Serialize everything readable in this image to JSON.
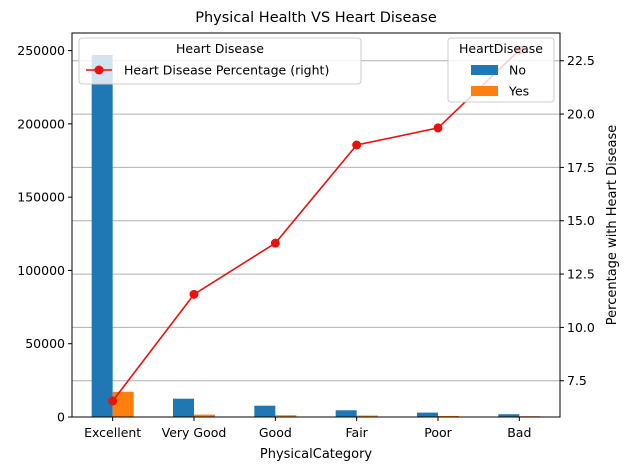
{
  "chart_data": {
    "type": "bar",
    "title": "Physical Health VS Heart Disease",
    "xlabel": "PhysicalCategory",
    "ylabel": "",
    "y2label": "Percentage with Heart Disease",
    "categories": [
      "Excellent",
      "Very Good",
      "Good",
      "Fair",
      "Poor",
      "Bad"
    ],
    "ylim": [
      0,
      262000
    ],
    "y2lim": [
      5.8,
      23.8
    ],
    "yticks": [
      0,
      50000,
      100000,
      150000,
      200000,
      250000
    ],
    "y2ticks": [
      7.5,
      10.0,
      12.5,
      15.0,
      17.5,
      20.0,
      22.5
    ],
    "grid": true,
    "series": [
      {
        "name": "No",
        "type": "bar",
        "axis": "left",
        "color": "#1f77b4",
        "values": [
          247000,
          12500,
          7700,
          4600,
          3000,
          1900
        ]
      },
      {
        "name": "Yes",
        "type": "bar",
        "axis": "left",
        "color": "#ff7f0e",
        "values": [
          17200,
          1600,
          1200,
          1000,
          700,
          550
        ]
      },
      {
        "name": "Heart Disease Percentage (right)",
        "type": "line",
        "axis": "right",
        "color": "#e8120f",
        "values": [
          6.55,
          11.55,
          13.95,
          18.55,
          19.35,
          23.0
        ]
      }
    ],
    "legends": [
      {
        "title": "Heart Disease",
        "placement": "top-left",
        "entries": [
          "Heart Disease Percentage (right)"
        ]
      },
      {
        "title": "HeartDisease",
        "placement": "top-right",
        "entries": [
          "No",
          "Yes"
        ]
      }
    ]
  }
}
